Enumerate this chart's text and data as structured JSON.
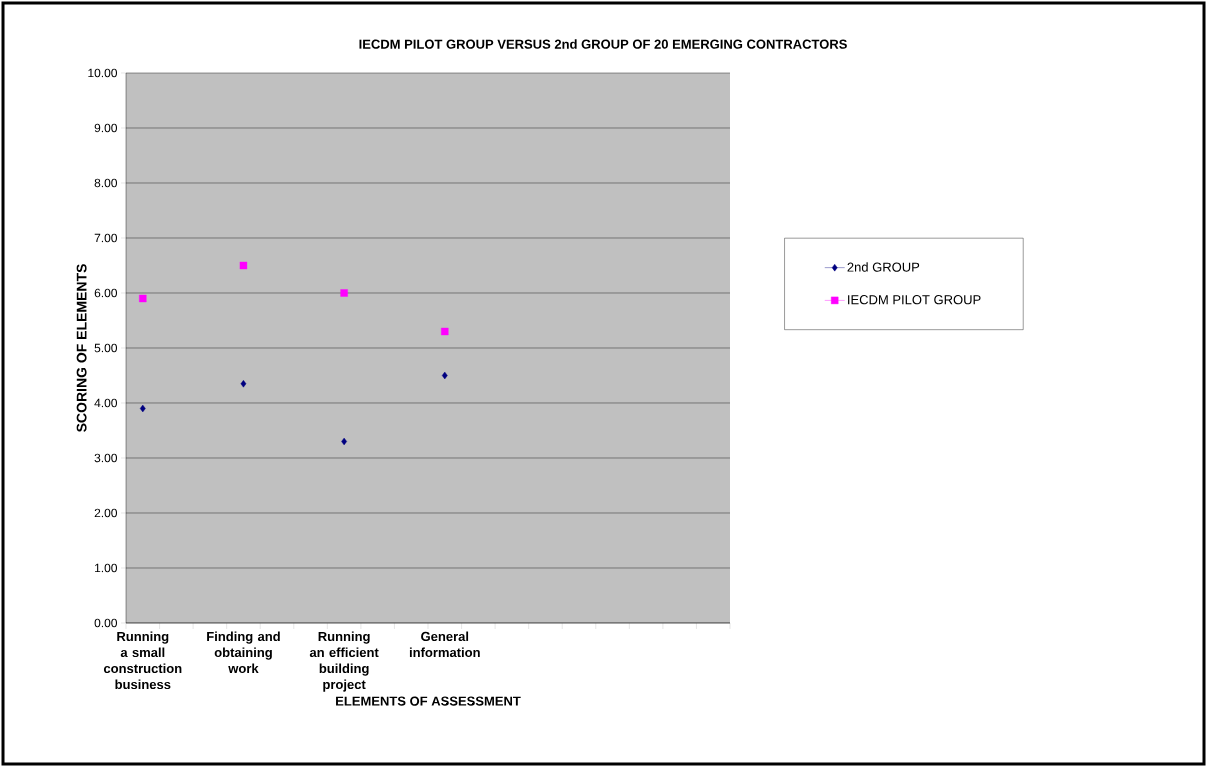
{
  "chart_data": {
    "type": "scatter",
    "title": "IECDM PILOT GROUP VERSUS 2nd GROUP OF 20 EMERGING CONTRACTORS",
    "xlabel": "ELEMENTS OF ASSESSMENT",
    "ylabel": "SCORING OF ELEMENTS",
    "categories": [
      "Running a small construction business",
      null,
      null,
      "Finding and obtaining work",
      null,
      null,
      "Running an efficient building project",
      null,
      null,
      "General information",
      null,
      null,
      null,
      null,
      null,
      null,
      null,
      null
    ],
    "series": [
      {
        "name": "2nd GROUP",
        "color": "#000080",
        "marker": "diamond",
        "values": [
          3.9,
          null,
          null,
          4.35,
          null,
          null,
          3.3,
          null,
          null,
          4.5,
          null,
          null,
          null,
          null,
          null,
          null,
          null,
          null
        ]
      },
      {
        "name": "IECDM PILOT GROUP",
        "color": "#ff00ff",
        "marker": "square",
        "values": [
          5.9,
          null,
          null,
          6.5,
          null,
          null,
          6.0,
          null,
          null,
          5.3,
          null,
          null,
          null,
          null,
          null,
          null,
          null,
          null
        ]
      }
    ],
    "ylim": [
      0,
      10
    ],
    "yticks": [
      {
        "value": 0,
        "label": "0.00"
      },
      {
        "value": 1,
        "label": "1.00"
      },
      {
        "value": 2,
        "label": "2.00"
      },
      {
        "value": 3,
        "label": "3.00"
      },
      {
        "value": 4,
        "label": "4.00"
      },
      {
        "value": 5,
        "label": "5.00"
      },
      {
        "value": 6,
        "label": "6.00"
      },
      {
        "value": 7,
        "label": "7.00"
      },
      {
        "value": 8,
        "label": "8.00"
      },
      {
        "value": 9,
        "label": "9.00"
      },
      {
        "value": 10,
        "label": "10.00"
      }
    ],
    "grid": "y",
    "legend": "right"
  }
}
